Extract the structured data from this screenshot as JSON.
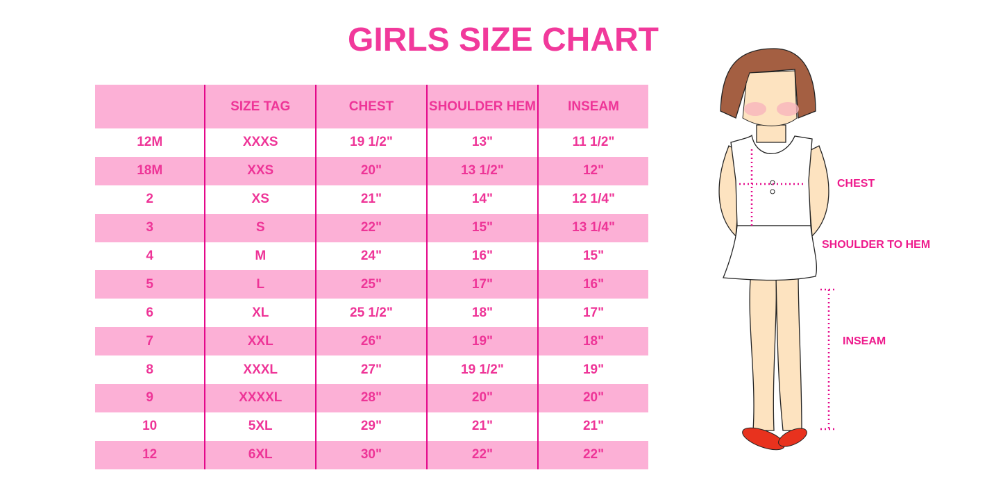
{
  "title": "GIRLS SIZE CHART",
  "table": {
    "headers": [
      "",
      "SIZE TAG",
      "CHEST",
      "SHOULDER HEM",
      "INSEAM"
    ],
    "rows": [
      [
        "12M",
        "XXXS",
        "19 1/2\"",
        "13\"",
        "11 1/2\""
      ],
      [
        "18M",
        "XXS",
        "20\"",
        "13 1/2\"",
        "12\""
      ],
      [
        "2",
        "XS",
        "21\"",
        "14\"",
        "12 1/4\""
      ],
      [
        "3",
        "S",
        "22\"",
        "15\"",
        "13 1/4\""
      ],
      [
        "4",
        "M",
        "24\"",
        "16\"",
        "15\""
      ],
      [
        "5",
        "L",
        "25\"",
        "17\"",
        "16\""
      ],
      [
        "6",
        "XL",
        "25 1/2\"",
        "18\"",
        "17\""
      ],
      [
        "7",
        "XXL",
        "26\"",
        "19\"",
        "18\""
      ],
      [
        "8",
        "XXXL",
        "27\"",
        "19 1/2\"",
        "19\""
      ],
      [
        "9",
        "XXXXL",
        "28\"",
        "20\"",
        "20\""
      ],
      [
        "10",
        "5XL",
        "29\"",
        "21\"",
        "21\""
      ],
      [
        "12",
        "6XL",
        "30\"",
        "22\"",
        "22\""
      ]
    ]
  },
  "illustration": {
    "labels": {
      "chest": "CHEST",
      "shoulder_to_hem": "SHOULDER TO HEM",
      "inseam": "INSEAM"
    }
  },
  "colors": {
    "accent": "#ee3497",
    "row_pink": "#fcb0d6",
    "divider": "#e4088a"
  }
}
